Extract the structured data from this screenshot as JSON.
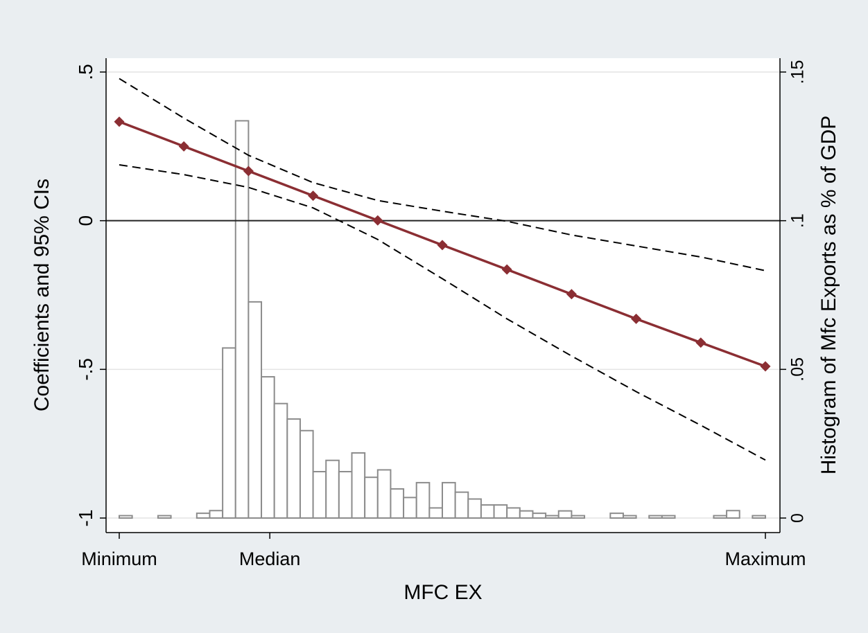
{
  "chart_data": {
    "type": "line",
    "xlabel": "MFC EX",
    "ylabel_left": "Coefficients and 95% CIs",
    "ylabel_right": "Histogram of Mfc Exports as % of GDP",
    "x_ticks": [
      {
        "label": "Minimum",
        "x": 0
      },
      {
        "label": "Median",
        "x": 2.33
      },
      {
        "label": "Maximum",
        "x": 10
      }
    ],
    "xlim": [
      0,
      10
    ],
    "ylim_left": [
      -1,
      0.5
    ],
    "ylim_right": [
      0,
      0.15
    ],
    "yticks_left": [
      {
        "label": ".5",
        "value": 0.5
      },
      {
        "label": "0",
        "value": 0
      },
      {
        "label": "-.5",
        "value": -0.5
      },
      {
        "label": "-1",
        "value": -1
      }
    ],
    "yticks_right": [
      {
        "label": ".15",
        "value": 0.15
      },
      {
        "label": ".1",
        "value": 0.1
      },
      {
        "label": ".05",
        "value": 0.05
      },
      {
        "label": "0",
        "value": 0
      }
    ],
    "grid": true,
    "reference_line_y": 0,
    "colors": {
      "coefficient": "#8b2e33",
      "ci": "#000000",
      "histogram_edge": "#8c8c8c",
      "background_outer": "#eaeef1",
      "plot_background": "#ffffff"
    },
    "series": [
      {
        "role": "coefficient",
        "style": "solid-diamond",
        "x": [
          0,
          1,
          2,
          3,
          4,
          5,
          6,
          7,
          8,
          9,
          10
        ],
        "values": [
          0.333,
          0.25,
          0.167,
          0.084,
          0.001,
          -0.082,
          -0.164,
          -0.247,
          -0.33,
          -0.41,
          -0.49
        ]
      },
      {
        "role": "upper_ci",
        "style": "dashed",
        "x": [
          0,
          1,
          2,
          3,
          4,
          5,
          6,
          7,
          8,
          9,
          10
        ],
        "values": [
          0.478,
          0.345,
          0.22,
          0.128,
          0.068,
          0.032,
          -0.002,
          -0.048,
          -0.085,
          -0.122,
          -0.168
        ]
      },
      {
        "role": "lower_ci",
        "style": "dashed",
        "x": [
          0,
          1,
          2,
          3,
          4,
          5,
          6,
          7,
          8,
          9,
          10
        ],
        "values": [
          0.188,
          0.155,
          0.112,
          0.043,
          -0.063,
          -0.195,
          -0.33,
          -0.455,
          -0.575,
          -0.688,
          -0.805
        ]
      }
    ],
    "histogram": {
      "bin_width": 0.2,
      "bins": [
        {
          "x": 0,
          "h": 0.0008
        },
        {
          "x": 0.6,
          "h": 0.0008
        },
        {
          "x": 1.2,
          "h": 0.0016
        },
        {
          "x": 1.4,
          "h": 0.0025
        },
        {
          "x": 1.6,
          "h": 0.0572
        },
        {
          "x": 1.8,
          "h": 0.1336
        },
        {
          "x": 2.0,
          "h": 0.0727
        },
        {
          "x": 2.2,
          "h": 0.0475
        },
        {
          "x": 2.4,
          "h": 0.0385
        },
        {
          "x": 2.6,
          "h": 0.0333
        },
        {
          "x": 2.8,
          "h": 0.0294
        },
        {
          "x": 3.0,
          "h": 0.0156
        },
        {
          "x": 3.2,
          "h": 0.0194
        },
        {
          "x": 3.4,
          "h": 0.0156
        },
        {
          "x": 3.6,
          "h": 0.0219
        },
        {
          "x": 3.8,
          "h": 0.0137
        },
        {
          "x": 4.0,
          "h": 0.0162
        },
        {
          "x": 4.2,
          "h": 0.0098
        },
        {
          "x": 4.4,
          "h": 0.0069
        },
        {
          "x": 4.6,
          "h": 0.0119
        },
        {
          "x": 4.8,
          "h": 0.0034
        },
        {
          "x": 5.0,
          "h": 0.0119
        },
        {
          "x": 5.2,
          "h": 0.0087
        },
        {
          "x": 5.4,
          "h": 0.0064
        },
        {
          "x": 5.6,
          "h": 0.0044
        },
        {
          "x": 5.8,
          "h": 0.0044
        },
        {
          "x": 6.0,
          "h": 0.0034
        },
        {
          "x": 6.2,
          "h": 0.0024
        },
        {
          "x": 6.4,
          "h": 0.0016
        },
        {
          "x": 6.6,
          "h": 0.0008
        },
        {
          "x": 6.8,
          "h": 0.0024
        },
        {
          "x": 7.0,
          "h": 0.0008
        },
        {
          "x": 7.6,
          "h": 0.0016
        },
        {
          "x": 7.8,
          "h": 0.0008
        },
        {
          "x": 8.2,
          "h": 0.0008
        },
        {
          "x": 8.4,
          "h": 0.0008
        },
        {
          "x": 9.2,
          "h": 0.0008
        },
        {
          "x": 9.4,
          "h": 0.0025
        },
        {
          "x": 9.8,
          "h": 0.0008
        }
      ]
    }
  }
}
